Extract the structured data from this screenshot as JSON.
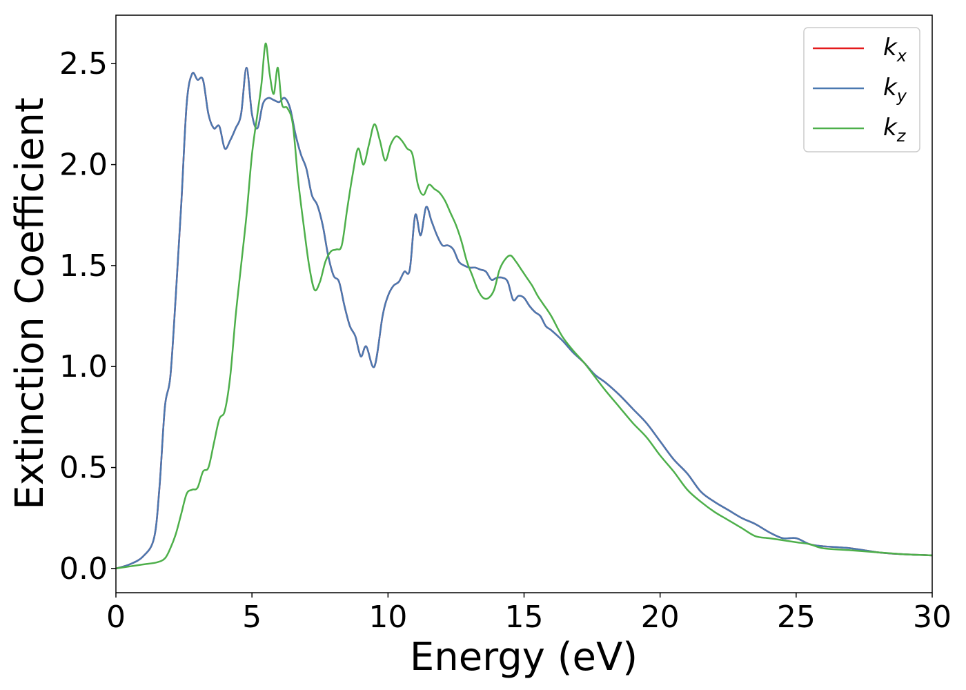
{
  "chart_data": {
    "type": "line",
    "xlabel": "Energy (eV)",
    "ylabel": "Extinction Coefficient",
    "xlim": [
      0,
      30
    ],
    "ylim": [
      -0.12,
      2.74
    ],
    "xticks": [
      0,
      5,
      10,
      15,
      20,
      25,
      30
    ],
    "yticks": [
      0.0,
      0.5,
      1.0,
      1.5,
      2.0,
      2.5
    ],
    "xtick_labels": [
      "0",
      "5",
      "10",
      "15",
      "20",
      "25",
      "30"
    ],
    "ytick_labels": [
      "0.0",
      "0.5",
      "1.0",
      "1.5",
      "2.0",
      "2.5"
    ],
    "grid": false,
    "legend_position": "top-right",
    "series": [
      {
        "name": "k_x",
        "label_main": "k",
        "label_sub": "x",
        "color": "#e41a1c",
        "x": [
          0,
          0.5,
          1.0,
          1.4,
          1.6,
          1.8,
          2.0,
          2.2,
          2.4,
          2.6,
          2.8,
          3.0,
          3.2,
          3.4,
          3.6,
          3.8,
          4.0,
          4.2,
          4.4,
          4.6,
          4.8,
          5.0,
          5.2,
          5.4,
          5.6,
          5.8,
          6.0,
          6.2,
          6.4,
          6.6,
          6.8,
          7.0,
          7.2,
          7.4,
          7.6,
          7.8,
          8.0,
          8.2,
          8.4,
          8.6,
          8.8,
          9.0,
          9.2,
          9.5,
          9.8,
          10.0,
          10.2,
          10.4,
          10.6,
          10.8,
          11.0,
          11.2,
          11.4,
          11.6,
          11.8,
          12.0,
          12.2,
          12.4,
          12.6,
          12.8,
          13.0,
          13.2,
          13.4,
          13.6,
          13.8,
          14.0,
          14.2,
          14.4,
          14.6,
          14.8,
          15.0,
          15.2,
          15.4,
          15.6,
          15.8,
          16.0,
          16.4,
          16.8,
          17.2,
          17.6,
          18.0,
          18.5,
          19.0,
          19.5,
          20.0,
          20.5,
          21.0,
          21.5,
          22.0,
          22.5,
          23.0,
          23.5,
          24.0,
          24.5,
          25.0,
          25.5,
          26.0,
          27.0,
          28.0,
          29.0,
          30.0
        ],
        "y": [
          0.0,
          0.02,
          0.06,
          0.15,
          0.4,
          0.8,
          0.95,
          1.35,
          1.8,
          2.3,
          2.45,
          2.42,
          2.42,
          2.25,
          2.18,
          2.19,
          2.08,
          2.12,
          2.18,
          2.25,
          2.48,
          2.25,
          2.18,
          2.3,
          2.33,
          2.32,
          2.31,
          2.33,
          2.28,
          2.15,
          2.05,
          1.98,
          1.85,
          1.8,
          1.7,
          1.55,
          1.45,
          1.42,
          1.3,
          1.2,
          1.15,
          1.05,
          1.1,
          1.0,
          1.25,
          1.35,
          1.4,
          1.42,
          1.47,
          1.48,
          1.75,
          1.65,
          1.79,
          1.72,
          1.65,
          1.6,
          1.6,
          1.58,
          1.52,
          1.5,
          1.49,
          1.49,
          1.48,
          1.47,
          1.43,
          1.44,
          1.44,
          1.42,
          1.33,
          1.35,
          1.34,
          1.3,
          1.27,
          1.25,
          1.2,
          1.18,
          1.13,
          1.07,
          1.02,
          0.96,
          0.92,
          0.86,
          0.79,
          0.72,
          0.63,
          0.54,
          0.47,
          0.38,
          0.33,
          0.29,
          0.25,
          0.22,
          0.18,
          0.15,
          0.15,
          0.12,
          0.11,
          0.1,
          0.08,
          0.07,
          0.065
        ]
      },
      {
        "name": "k_y",
        "label_main": "k",
        "label_sub": "y",
        "color": "#4a78b0",
        "x": [
          0,
          0.5,
          1.0,
          1.4,
          1.6,
          1.8,
          2.0,
          2.2,
          2.4,
          2.6,
          2.8,
          3.0,
          3.2,
          3.4,
          3.6,
          3.8,
          4.0,
          4.2,
          4.4,
          4.6,
          4.8,
          5.0,
          5.2,
          5.4,
          5.6,
          5.8,
          6.0,
          6.2,
          6.4,
          6.6,
          6.8,
          7.0,
          7.2,
          7.4,
          7.6,
          7.8,
          8.0,
          8.2,
          8.4,
          8.6,
          8.8,
          9.0,
          9.2,
          9.5,
          9.8,
          10.0,
          10.2,
          10.4,
          10.6,
          10.8,
          11.0,
          11.2,
          11.4,
          11.6,
          11.8,
          12.0,
          12.2,
          12.4,
          12.6,
          12.8,
          13.0,
          13.2,
          13.4,
          13.6,
          13.8,
          14.0,
          14.2,
          14.4,
          14.6,
          14.8,
          15.0,
          15.2,
          15.4,
          15.6,
          15.8,
          16.0,
          16.4,
          16.8,
          17.2,
          17.6,
          18.0,
          18.5,
          19.0,
          19.5,
          20.0,
          20.5,
          21.0,
          21.5,
          22.0,
          22.5,
          23.0,
          23.5,
          24.0,
          24.5,
          25.0,
          25.5,
          26.0,
          27.0,
          28.0,
          29.0,
          30.0
        ],
        "y": [
          0.0,
          0.02,
          0.06,
          0.15,
          0.4,
          0.8,
          0.95,
          1.35,
          1.8,
          2.3,
          2.45,
          2.42,
          2.42,
          2.25,
          2.18,
          2.19,
          2.08,
          2.12,
          2.18,
          2.25,
          2.48,
          2.25,
          2.18,
          2.3,
          2.33,
          2.32,
          2.31,
          2.33,
          2.28,
          2.15,
          2.05,
          1.98,
          1.85,
          1.8,
          1.7,
          1.55,
          1.45,
          1.42,
          1.3,
          1.2,
          1.15,
          1.05,
          1.1,
          1.0,
          1.25,
          1.35,
          1.4,
          1.42,
          1.47,
          1.48,
          1.75,
          1.65,
          1.79,
          1.72,
          1.65,
          1.6,
          1.6,
          1.58,
          1.52,
          1.5,
          1.49,
          1.49,
          1.48,
          1.47,
          1.43,
          1.44,
          1.44,
          1.42,
          1.33,
          1.35,
          1.34,
          1.3,
          1.27,
          1.25,
          1.2,
          1.18,
          1.13,
          1.07,
          1.02,
          0.96,
          0.92,
          0.86,
          0.79,
          0.72,
          0.63,
          0.54,
          0.47,
          0.38,
          0.33,
          0.29,
          0.25,
          0.22,
          0.18,
          0.15,
          0.15,
          0.12,
          0.11,
          0.1,
          0.08,
          0.07,
          0.065
        ]
      },
      {
        "name": "k_z",
        "label_main": "k",
        "label_sub": "z",
        "color": "#4daf4a",
        "x": [
          0,
          0.5,
          1.0,
          1.5,
          1.8,
          2.0,
          2.2,
          2.4,
          2.6,
          2.8,
          3.0,
          3.2,
          3.4,
          3.6,
          3.8,
          4.0,
          4.2,
          4.4,
          4.6,
          4.8,
          5.0,
          5.2,
          5.35,
          5.5,
          5.65,
          5.8,
          5.95,
          6.1,
          6.3,
          6.5,
          6.7,
          6.9,
          7.1,
          7.3,
          7.5,
          7.7,
          7.9,
          8.1,
          8.3,
          8.5,
          8.7,
          8.9,
          9.1,
          9.3,
          9.5,
          9.7,
          9.9,
          10.1,
          10.3,
          10.5,
          10.7,
          10.9,
          11.1,
          11.3,
          11.5,
          11.7,
          11.9,
          12.1,
          12.3,
          12.5,
          12.7,
          12.9,
          13.1,
          13.3,
          13.5,
          13.7,
          13.9,
          14.1,
          14.3,
          14.5,
          14.7,
          14.9,
          15.1,
          15.3,
          15.5,
          15.7,
          16.0,
          16.4,
          16.8,
          17.2,
          17.6,
          18.0,
          18.5,
          19.0,
          19.5,
          20.0,
          20.5,
          21.0,
          21.5,
          22.0,
          22.5,
          23.0,
          23.5,
          24.0,
          24.5,
          25.0,
          25.5,
          26.0,
          27.0,
          28.0,
          29.0,
          30.0
        ],
        "y": [
          0.0,
          0.01,
          0.02,
          0.03,
          0.05,
          0.1,
          0.17,
          0.27,
          0.37,
          0.39,
          0.4,
          0.48,
          0.5,
          0.62,
          0.74,
          0.78,
          0.95,
          1.25,
          1.5,
          1.75,
          2.05,
          2.25,
          2.4,
          2.6,
          2.45,
          2.35,
          2.48,
          2.3,
          2.28,
          2.2,
          1.92,
          1.7,
          1.5,
          1.38,
          1.42,
          1.52,
          1.57,
          1.58,
          1.6,
          1.78,
          1.95,
          2.08,
          2.0,
          2.1,
          2.2,
          2.12,
          2.02,
          2.1,
          2.14,
          2.12,
          2.08,
          2.05,
          1.9,
          1.85,
          1.9,
          1.88,
          1.86,
          1.82,
          1.76,
          1.7,
          1.62,
          1.52,
          1.45,
          1.38,
          1.34,
          1.34,
          1.38,
          1.48,
          1.53,
          1.55,
          1.52,
          1.48,
          1.44,
          1.4,
          1.35,
          1.31,
          1.25,
          1.15,
          1.08,
          1.02,
          0.95,
          0.88,
          0.8,
          0.72,
          0.65,
          0.56,
          0.48,
          0.39,
          0.33,
          0.28,
          0.24,
          0.2,
          0.16,
          0.15,
          0.14,
          0.13,
          0.12,
          0.1,
          0.09,
          0.08,
          0.07,
          0.065
        ]
      }
    ]
  }
}
